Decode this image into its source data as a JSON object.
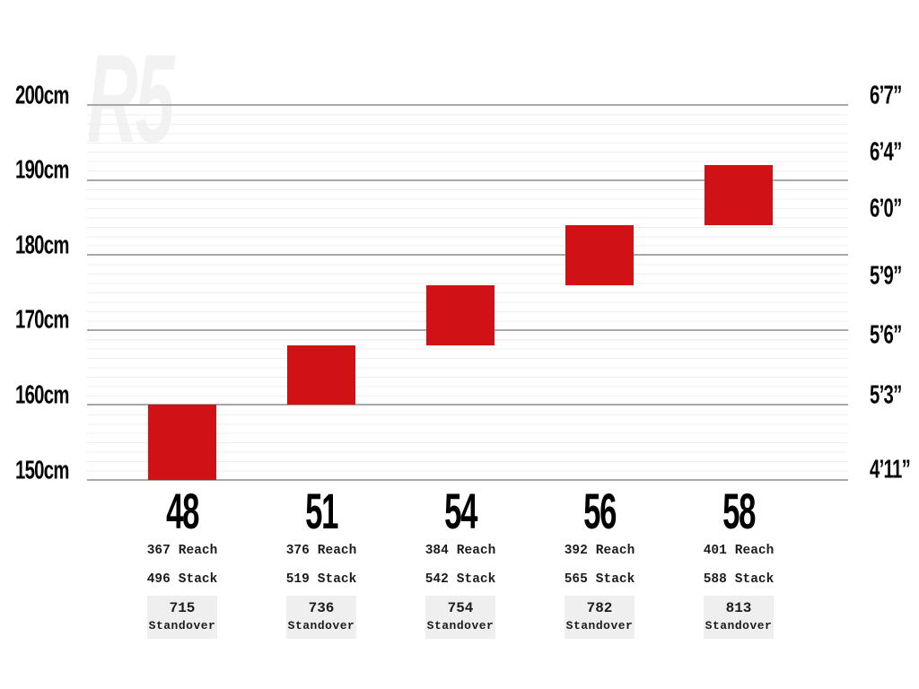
{
  "chart_data": {
    "type": "bar",
    "title": "R5",
    "subtitle": "",
    "bar_color": "#d01217",
    "ylim_cm": [
      150,
      200
    ],
    "grid": "horizontal major lines every 10cm, faint minor lines between",
    "legend_position": "none",
    "left_axis": {
      "unit": "cm",
      "ticks": [
        {
          "label": "200cm",
          "cm": 200
        },
        {
          "label": "190cm",
          "cm": 190
        },
        {
          "label": "180cm",
          "cm": 180
        },
        {
          "label": "170cm",
          "cm": 170
        },
        {
          "label": "160cm",
          "cm": 160
        },
        {
          "label": "150cm",
          "cm": 150
        }
      ]
    },
    "right_axis": {
      "unit": "feet-inches",
      "ticks": [
        {
          "label": "6’7”",
          "cm": 201.2
        },
        {
          "label": "6’4”",
          "cm": 193.7
        },
        {
          "label": "6’0”",
          "cm": 186.1
        },
        {
          "label": "5’9”",
          "cm": 177.2
        },
        {
          "label": "5’6”",
          "cm": 169.3
        },
        {
          "label": "5’3”",
          "cm": 161.3
        },
        {
          "label": "4’11”",
          "cm": 151.3
        }
      ]
    },
    "labels": {
      "reach": "Reach",
      "stack": "Stack",
      "standover": "Standover"
    },
    "sizes": [
      {
        "size": "48",
        "height_min_cm": 150,
        "height_max_cm": 160,
        "reach_mm": "367",
        "stack_mm": "496",
        "standover_mm": "715"
      },
      {
        "size": "51",
        "height_min_cm": 160,
        "height_max_cm": 168,
        "reach_mm": "376",
        "stack_mm": "519",
        "standover_mm": "736"
      },
      {
        "size": "54",
        "height_min_cm": 168,
        "height_max_cm": 176,
        "reach_mm": "384",
        "stack_mm": "542",
        "standover_mm": "754"
      },
      {
        "size": "56",
        "height_min_cm": 176,
        "height_max_cm": 184,
        "reach_mm": "392",
        "stack_mm": "565",
        "standover_mm": "782"
      },
      {
        "size": "58",
        "height_min_cm": 184,
        "height_max_cm": 192,
        "reach_mm": "401",
        "stack_mm": "588",
        "standover_mm": "813"
      }
    ]
  }
}
